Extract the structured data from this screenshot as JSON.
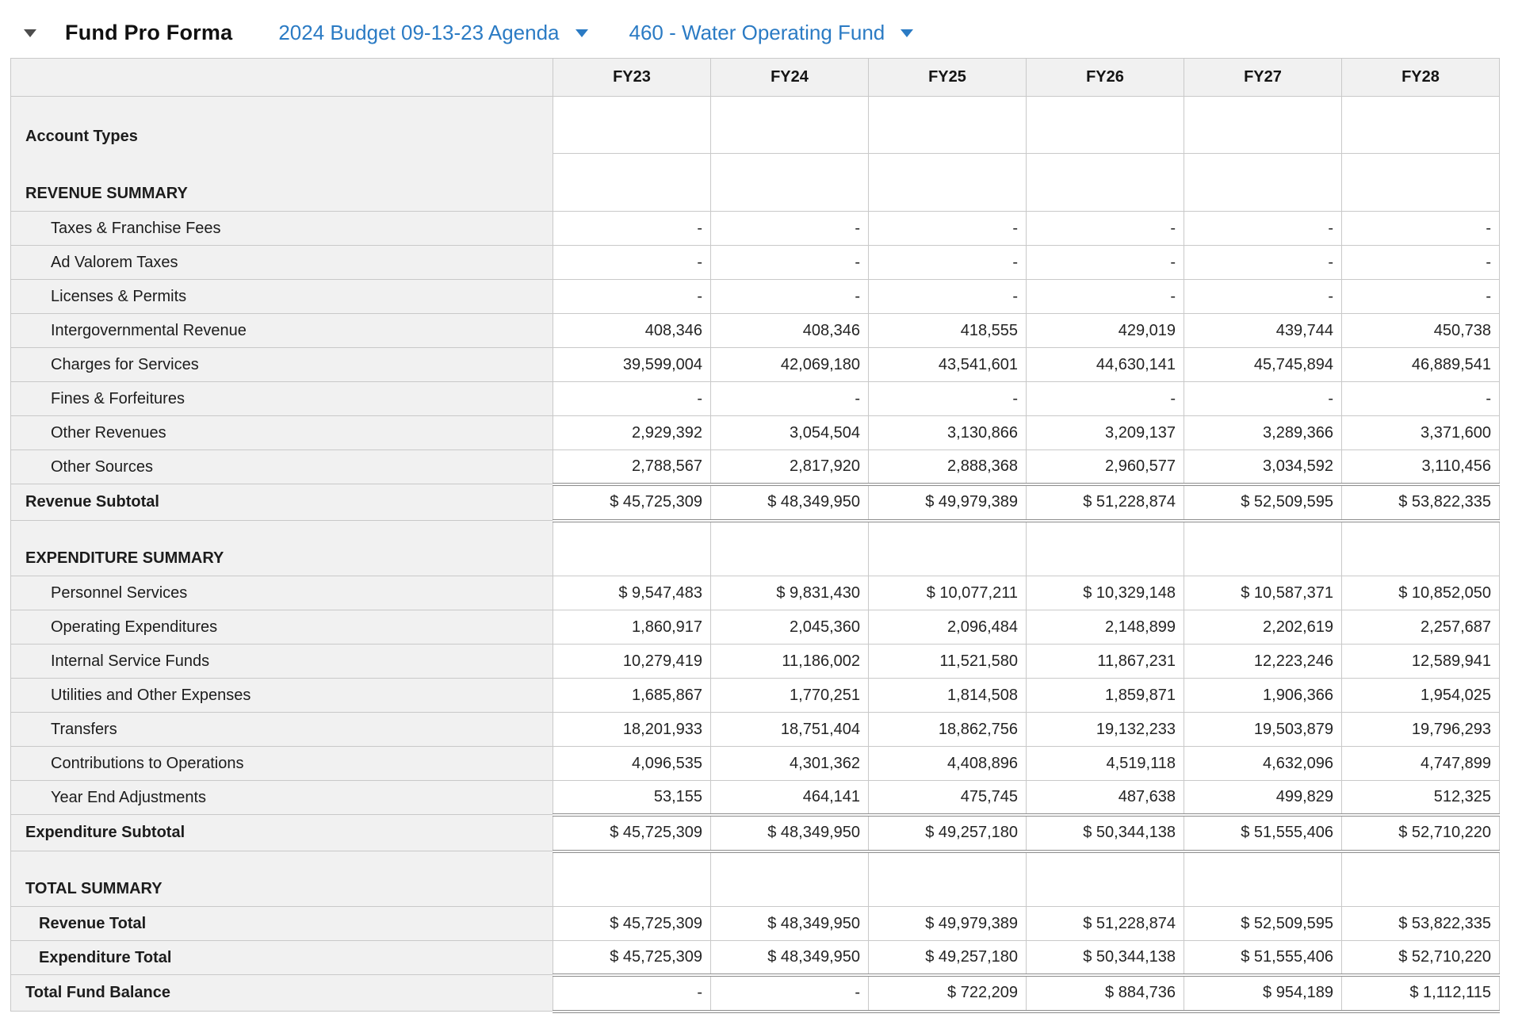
{
  "header": {
    "title": "Fund Pro Forma",
    "collapse_icon": "caret-down",
    "budget_dropdown": {
      "label": "2024 Budget 09-13-23 Agenda",
      "caret_icon": "caret-down"
    },
    "fund_dropdown": {
      "label": "460 - Water Operating Fund",
      "caret_icon": "caret-down"
    }
  },
  "table": {
    "corner_label": "",
    "columns": [
      "FY23",
      "FY24",
      "FY25",
      "FY26",
      "FY27",
      "FY28"
    ],
    "rows": [
      {
        "type": "section2",
        "labels": [
          "Account Types",
          "REVENUE SUMMARY"
        ]
      },
      {
        "type": "item",
        "label": "Taxes & Franchise Fees",
        "values": [
          "-",
          "-",
          "-",
          "-",
          "-",
          "-"
        ]
      },
      {
        "type": "item",
        "label": "Ad Valorem Taxes",
        "values": [
          "-",
          "-",
          "-",
          "-",
          "-",
          "-"
        ]
      },
      {
        "type": "item",
        "label": "Licenses & Permits",
        "values": [
          "-",
          "-",
          "-",
          "-",
          "-",
          "-"
        ]
      },
      {
        "type": "item",
        "label": "Intergovernmental Revenue",
        "values": [
          "408,346",
          "408,346",
          "418,555",
          "429,019",
          "439,744",
          "450,738"
        ]
      },
      {
        "type": "item",
        "label": "Charges for Services",
        "values": [
          "39,599,004",
          "42,069,180",
          "43,541,601",
          "44,630,141",
          "45,745,894",
          "46,889,541"
        ]
      },
      {
        "type": "item",
        "label": "Fines & Forfeitures",
        "values": [
          "-",
          "-",
          "-",
          "-",
          "-",
          "-"
        ]
      },
      {
        "type": "item",
        "label": "Other Revenues",
        "values": [
          "2,929,392",
          "3,054,504",
          "3,130,866",
          "3,209,137",
          "3,289,366",
          "3,371,600"
        ]
      },
      {
        "type": "item",
        "label": "Other Sources",
        "values": [
          "2,788,567",
          "2,817,920",
          "2,888,368",
          "2,960,577",
          "3,034,592",
          "3,110,456"
        ]
      },
      {
        "type": "subtotal",
        "label": "Revenue Subtotal",
        "values": [
          "$ 45,725,309",
          "$ 48,349,950",
          "$ 49,979,389",
          "$ 51,228,874",
          "$ 52,509,595",
          "$ 53,822,335"
        ]
      },
      {
        "type": "section1",
        "label": "EXPENDITURE SUMMARY"
      },
      {
        "type": "item",
        "label": "Personnel Services",
        "values": [
          "$ 9,547,483",
          "$ 9,831,430",
          "$ 10,077,211",
          "$ 10,329,148",
          "$ 10,587,371",
          "$ 10,852,050"
        ]
      },
      {
        "type": "item",
        "label": "Operating Expenditures",
        "values": [
          "1,860,917",
          "2,045,360",
          "2,096,484",
          "2,148,899",
          "2,202,619",
          "2,257,687"
        ]
      },
      {
        "type": "item",
        "label": "Internal Service Funds",
        "values": [
          "10,279,419",
          "11,186,002",
          "11,521,580",
          "11,867,231",
          "12,223,246",
          "12,589,941"
        ]
      },
      {
        "type": "item",
        "label": "Utilities and Other Expenses",
        "values": [
          "1,685,867",
          "1,770,251",
          "1,814,508",
          "1,859,871",
          "1,906,366",
          "1,954,025"
        ]
      },
      {
        "type": "item",
        "label": "Transfers",
        "values": [
          "18,201,933",
          "18,751,404",
          "18,862,756",
          "19,132,233",
          "19,503,879",
          "19,796,293"
        ]
      },
      {
        "type": "item",
        "label": "Contributions to Operations",
        "values": [
          "4,096,535",
          "4,301,362",
          "4,408,896",
          "4,519,118",
          "4,632,096",
          "4,747,899"
        ]
      },
      {
        "type": "item",
        "label": "Year End Adjustments",
        "values": [
          "53,155",
          "464,141",
          "475,745",
          "487,638",
          "499,829",
          "512,325"
        ]
      },
      {
        "type": "subtotal",
        "label": "Expenditure Subtotal",
        "values": [
          "$ 45,725,309",
          "$ 48,349,950",
          "$ 49,257,180",
          "$ 50,344,138",
          "$ 51,555,406",
          "$ 52,710,220"
        ]
      },
      {
        "type": "section1",
        "label": "TOTAL SUMMARY"
      },
      {
        "type": "total",
        "label": "Revenue Total",
        "values": [
          "$ 45,725,309",
          "$ 48,349,950",
          "$ 49,979,389",
          "$ 51,228,874",
          "$ 52,509,595",
          "$ 53,822,335"
        ]
      },
      {
        "type": "total",
        "label": "Expenditure Total",
        "values": [
          "$ 45,725,309",
          "$ 48,349,950",
          "$ 49,257,180",
          "$ 50,344,138",
          "$ 51,555,406",
          "$ 52,710,220"
        ]
      },
      {
        "type": "grandtotal",
        "label": "Total Fund Balance",
        "values": [
          "-",
          "-",
          "$ 722,209",
          "$ 884,736",
          "$ 954,189",
          "$ 1,112,115"
        ]
      }
    ]
  }
}
